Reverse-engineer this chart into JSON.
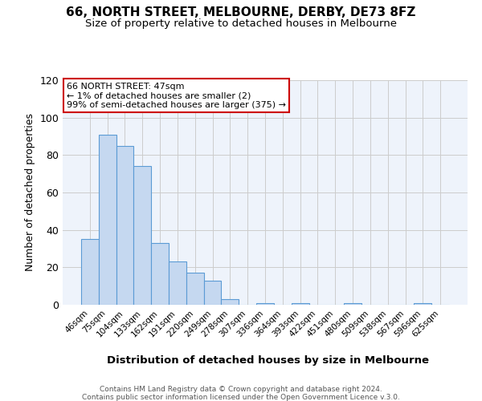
{
  "title": "66, NORTH STREET, MELBOURNE, DERBY, DE73 8FZ",
  "subtitle": "Size of property relative to detached houses in Melbourne",
  "xlabel": "Distribution of detached houses by size in Melbourne",
  "ylabel": "Number of detached properties",
  "bar_color": "#c5d8f0",
  "bar_edge_color": "#5b9bd5",
  "bg_color": "#eef3fb",
  "grid_color": "#cccccc",
  "categories": [
    "46sqm",
    "75sqm",
    "104sqm",
    "133sqm",
    "162sqm",
    "191sqm",
    "220sqm",
    "249sqm",
    "278sqm",
    "307sqm",
    "336sqm",
    "364sqm",
    "393sqm",
    "422sqm",
    "451sqm",
    "480sqm",
    "509sqm",
    "538sqm",
    "567sqm",
    "596sqm",
    "625sqm"
  ],
  "values": [
    35,
    91,
    85,
    74,
    33,
    23,
    17,
    13,
    3,
    0,
    1,
    0,
    1,
    0,
    0,
    1,
    0,
    0,
    0,
    1,
    0
  ],
  "ylim": [
    0,
    120
  ],
  "yticks": [
    0,
    20,
    40,
    60,
    80,
    100,
    120
  ],
  "annotation_title": "66 NORTH STREET: 47sqm",
  "annotation_line1": "← 1% of detached houses are smaller (2)",
  "annotation_line2": "99% of semi-detached houses are larger (375) →",
  "annotation_box_color": "#ffffff",
  "annotation_box_edge": "#cc0000",
  "footer1": "Contains HM Land Registry data © Crown copyright and database right 2024.",
  "footer2": "Contains public sector information licensed under the Open Government Licence v.3.0."
}
